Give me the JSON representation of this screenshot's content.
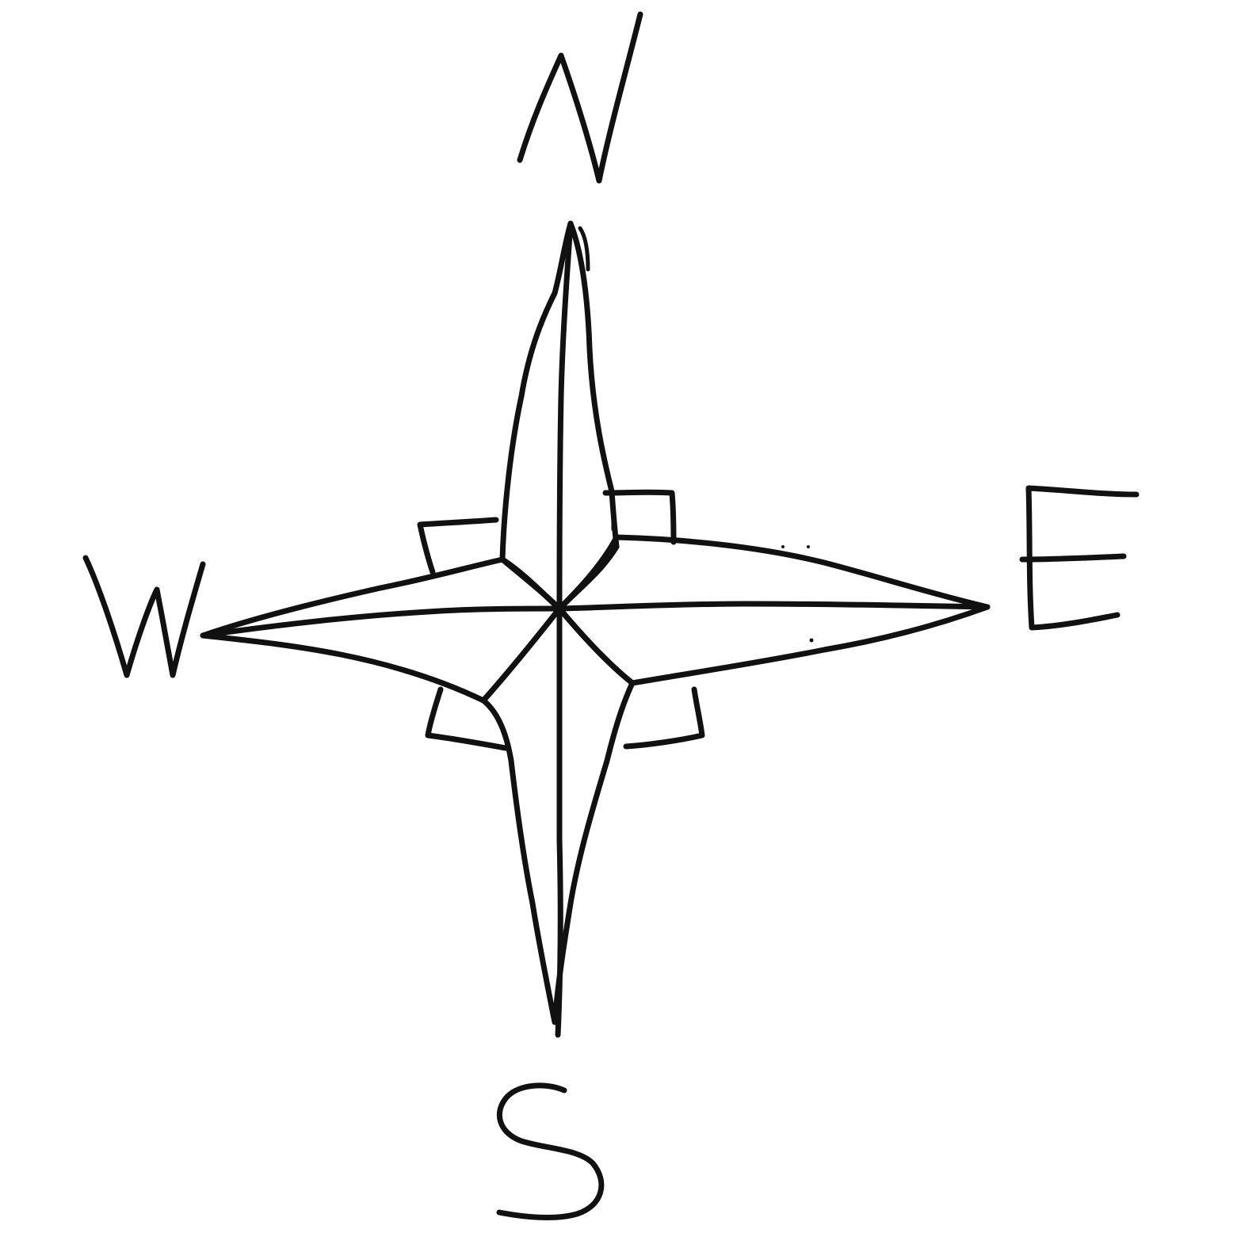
{
  "compass": {
    "north_label": "N",
    "east_label": "E",
    "south_label": "S",
    "west_label": "W"
  },
  "colors": {
    "ink": "#111111",
    "paper": "#ffffff"
  }
}
